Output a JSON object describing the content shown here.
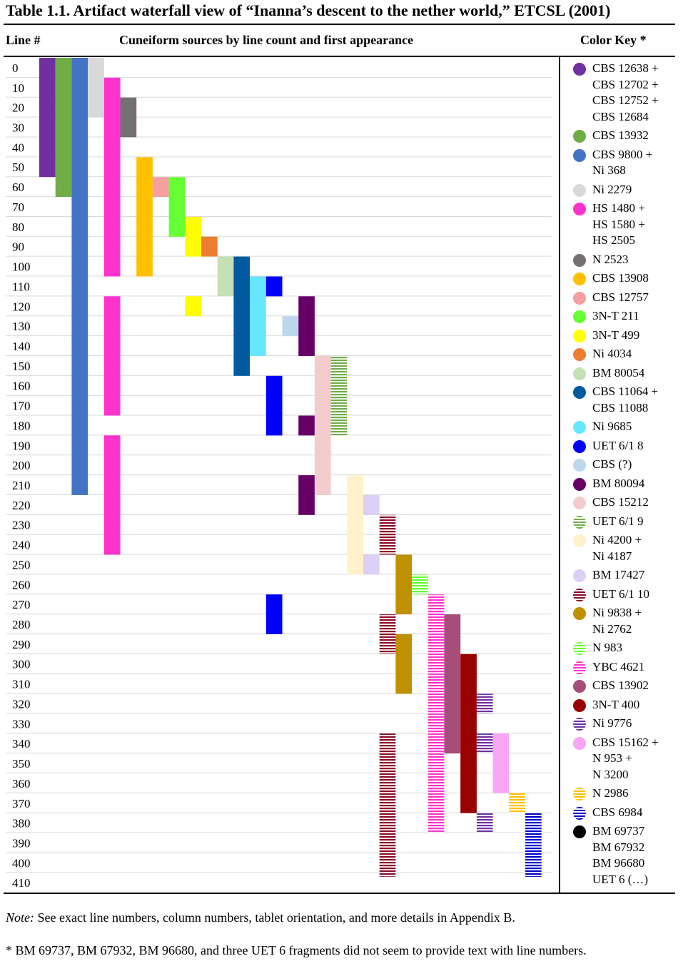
{
  "title": "Table 1.1. Artifact waterfall view of “Inanna’s descent to the nether world,” ETCSL (2001)",
  "headers": {
    "line": "Line #",
    "sources": "Cuneiform sources by line count and first appearance",
    "key": "Color Key *"
  },
  "note_label": "Note:",
  "note_text": " See exact line numbers, column numbers, tablet orientation, and more details in Appendix B.",
  "footnote": "* BM 69737, BM 67932, BM 96680, and three UET 6 fragments did not seem to provide text with line numbers.",
  "chart_data": {
    "type": "bar",
    "orientation": "vertical-range (waterfall)",
    "ylabel": "Line #",
    "xlabel": "Cuneiform sources by line count and first appearance",
    "yticks": [
      0,
      10,
      20,
      30,
      40,
      50,
      60,
      70,
      80,
      90,
      100,
      110,
      120,
      130,
      140,
      150,
      160,
      170,
      180,
      190,
      200,
      210,
      220,
      230,
      240,
      250,
      260,
      270,
      280,
      290,
      300,
      310,
      320,
      330,
      340,
      350,
      360,
      370,
      380,
      390,
      400,
      410
    ],
    "ylim": [
      0,
      412
    ],
    "grid": true,
    "legend_position": "right",
    "series": [
      {
        "name": "CBS 12638 + CBS 12702 + CBS 12752 + CBS 12684",
        "color": "#7030A0",
        "pattern": "solid",
        "ranges": [
          [
            0,
            59
          ]
        ]
      },
      {
        "name": "CBS 13932",
        "color": "#70AD47",
        "pattern": "solid",
        "ranges": [
          [
            0,
            69
          ]
        ]
      },
      {
        "name": "CBS 9800 + Ni 368",
        "color": "#4472C4",
        "pattern": "solid",
        "ranges": [
          [
            0,
            219
          ]
        ]
      },
      {
        "name": "Ni 2279",
        "color": "#D9D9D9",
        "pattern": "solid",
        "ranges": [
          [
            0,
            29
          ]
        ]
      },
      {
        "name": "HS 1480 + HS 1580 + HS 2505",
        "color": "#FF33CC",
        "pattern": "solid",
        "ranges": [
          [
            10,
            109
          ],
          [
            120,
            179
          ],
          [
            190,
            249
          ]
        ]
      },
      {
        "name": "N 2523",
        "color": "#767171",
        "pattern": "solid",
        "ranges": [
          [
            20,
            39
          ]
        ]
      },
      {
        "name": "CBS 13908",
        "color": "#FFC000",
        "pattern": "solid",
        "ranges": [
          [
            50,
            109
          ]
        ]
      },
      {
        "name": "CBS 12757",
        "color": "#F4A0A0",
        "pattern": "solid",
        "ranges": [
          [
            60,
            69
          ]
        ]
      },
      {
        "name": "3N-T 211",
        "color": "#66FF33",
        "pattern": "solid",
        "ranges": [
          [
            60,
            89
          ]
        ]
      },
      {
        "name": "3N-T 499",
        "color": "#FFFF00",
        "pattern": "solid",
        "ranges": [
          [
            80,
            99
          ],
          [
            120,
            129
          ]
        ]
      },
      {
        "name": "Ni 4034",
        "color": "#ED7D31",
        "pattern": "solid",
        "ranges": [
          [
            90,
            99
          ]
        ]
      },
      {
        "name": "BM 80054",
        "color": "#C5E0B4",
        "pattern": "solid",
        "ranges": [
          [
            100,
            119
          ]
        ]
      },
      {
        "name": "CBS 11064 + CBS 11088",
        "color": "#005AA0",
        "pattern": "solid",
        "ranges": [
          [
            100,
            159
          ]
        ]
      },
      {
        "name": "Ni 9685",
        "color": "#66E6FF",
        "pattern": "solid",
        "ranges": [
          [
            110,
            149
          ]
        ]
      },
      {
        "name": "UET 6/1 8",
        "color": "#0000FF",
        "pattern": "solid",
        "ranges": [
          [
            110,
            119
          ],
          [
            160,
            189
          ],
          [
            270,
            289
          ]
        ]
      },
      {
        "name": "CBS (?)",
        "color": "#BDD7EE",
        "pattern": "solid",
        "ranges": [
          [
            130,
            139
          ]
        ]
      },
      {
        "name": "BM 80094",
        "color": "#660066",
        "pattern": "solid",
        "ranges": [
          [
            120,
            149
          ],
          [
            180,
            189
          ],
          [
            210,
            229
          ]
        ]
      },
      {
        "name": "CBS 15212",
        "color": "#F2CCCC",
        "pattern": "solid",
        "ranges": [
          [
            150,
            219
          ]
        ]
      },
      {
        "name": "UET 6/1 9",
        "color": "#70AD47",
        "pattern": "striped",
        "ranges": [
          [
            150,
            189
          ]
        ]
      },
      {
        "name": "Ni 4200 + Ni 4187",
        "color": "#FFF2CC",
        "pattern": "solid",
        "ranges": [
          [
            210,
            259
          ]
        ]
      },
      {
        "name": "BM 17427",
        "color": "#DCD0F5",
        "pattern": "solid",
        "ranges": [
          [
            220,
            229
          ],
          [
            250,
            259
          ]
        ]
      },
      {
        "name": "UET 6/1 10",
        "color": "#8B0A28",
        "pattern": "striped",
        "ranges": [
          [
            230,
            249
          ],
          [
            280,
            299
          ],
          [
            340,
            412
          ]
        ]
      },
      {
        "name": "Ni 9838 + Ni 2762",
        "color": "#BF9000",
        "pattern": "solid",
        "ranges": [
          [
            250,
            279
          ],
          [
            290,
            319
          ]
        ]
      },
      {
        "name": "N 983",
        "color": "#66FF33",
        "pattern": "striped",
        "ranges": [
          [
            260,
            269
          ]
        ]
      },
      {
        "name": "YBC 4621",
        "color": "#FF33CC",
        "pattern": "striped",
        "ranges": [
          [
            270,
            389
          ]
        ]
      },
      {
        "name": "CBS 13902",
        "color": "#A64D79",
        "pattern": "solid",
        "ranges": [
          [
            280,
            349
          ]
        ]
      },
      {
        "name": "3N-T 400",
        "color": "#990000",
        "pattern": "solid",
        "ranges": [
          [
            300,
            379
          ]
        ]
      },
      {
        "name": "Ni 9776",
        "color": "#7030A0",
        "pattern": "striped",
        "ranges": [
          [
            320,
            329
          ],
          [
            340,
            349
          ],
          [
            380,
            389
          ]
        ]
      },
      {
        "name": "CBS 15162 + N 953 + N 3200",
        "color": "#F9A6F5",
        "pattern": "solid",
        "ranges": [
          [
            340,
            369
          ]
        ]
      },
      {
        "name": "N 2986",
        "color": "#FFC000",
        "pattern": "striped",
        "ranges": [
          [
            370,
            379
          ]
        ]
      },
      {
        "name": "CBS 6984",
        "color": "#0000CC",
        "pattern": "striped",
        "ranges": [
          [
            380,
            412
          ]
        ]
      }
    ],
    "legend": [
      {
        "lines": [
          "CBS 12638 +",
          "CBS 12702 +",
          "CBS 12752 +",
          "CBS 12684"
        ],
        "color": "#7030A0",
        "pattern": "solid"
      },
      {
        "lines": [
          "CBS 13932"
        ],
        "color": "#70AD47",
        "pattern": "solid"
      },
      {
        "lines": [
          "CBS 9800 +",
          "Ni 368"
        ],
        "color": "#4472C4",
        "pattern": "solid"
      },
      {
        "lines": [
          "Ni 2279"
        ],
        "color": "#D9D9D9",
        "pattern": "solid"
      },
      {
        "lines": [
          "HS 1480 +",
          "HS 1580 +",
          "HS 2505"
        ],
        "color": "#FF33CC",
        "pattern": "solid"
      },
      {
        "lines": [
          "N 2523"
        ],
        "color": "#767171",
        "pattern": "solid"
      },
      {
        "lines": [
          "CBS 13908"
        ],
        "color": "#FFC000",
        "pattern": "solid"
      },
      {
        "lines": [
          "CBS 12757"
        ],
        "color": "#F4A0A0",
        "pattern": "solid"
      },
      {
        "lines": [
          "3N-T 211"
        ],
        "color": "#66FF33",
        "pattern": "solid"
      },
      {
        "lines": [
          "3N-T 499"
        ],
        "color": "#FFFF00",
        "pattern": "solid"
      },
      {
        "lines": [
          "Ni 4034"
        ],
        "color": "#ED7D31",
        "pattern": "solid"
      },
      {
        "lines": [
          "BM 80054"
        ],
        "color": "#C5E0B4",
        "pattern": "solid"
      },
      {
        "lines": [
          "CBS 11064 +",
          "CBS 11088"
        ],
        "color": "#005AA0",
        "pattern": "solid"
      },
      {
        "lines": [
          "Ni 9685"
        ],
        "color": "#66E6FF",
        "pattern": "solid"
      },
      {
        "lines": [
          "UET 6/1 8"
        ],
        "color": "#0000FF",
        "pattern": "solid"
      },
      {
        "lines": [
          "CBS (?)"
        ],
        "color": "#BDD7EE",
        "pattern": "solid"
      },
      {
        "lines": [
          "BM 80094"
        ],
        "color": "#660066",
        "pattern": "solid"
      },
      {
        "lines": [
          "CBS 15212"
        ],
        "color": "#F2CCCC",
        "pattern": "solid"
      },
      {
        "lines": [
          "UET 6/1 9"
        ],
        "color": "#70AD47",
        "pattern": "striped"
      },
      {
        "lines": [
          "Ni 4200 +",
          "Ni 4187"
        ],
        "color": "#FFF2CC",
        "pattern": "solid"
      },
      {
        "lines": [
          "BM 17427"
        ],
        "color": "#DCD0F5",
        "pattern": "solid"
      },
      {
        "lines": [
          "UET 6/1 10"
        ],
        "color": "#8B0A28",
        "pattern": "striped"
      },
      {
        "lines": [
          "Ni 9838 +",
          "Ni 2762"
        ],
        "color": "#BF9000",
        "pattern": "solid"
      },
      {
        "lines": [
          "N 983"
        ],
        "color": "#66FF33",
        "pattern": "striped"
      },
      {
        "lines": [
          "YBC 4621"
        ],
        "color": "#FF33CC",
        "pattern": "striped"
      },
      {
        "lines": [
          "CBS 13902"
        ],
        "color": "#A64D79",
        "pattern": "solid"
      },
      {
        "lines": [
          "3N-T 400"
        ],
        "color": "#990000",
        "pattern": "solid"
      },
      {
        "lines": [
          "Ni 9776"
        ],
        "color": "#7030A0",
        "pattern": "striped"
      },
      {
        "lines": [
          "CBS 15162 +",
          "N 953 +",
          "N 3200"
        ],
        "color": "#F9A6F5",
        "pattern": "solid"
      },
      {
        "lines": [
          "N 2986"
        ],
        "color": "#FFC000",
        "pattern": "striped"
      },
      {
        "lines": [
          "CBS 6984"
        ],
        "color": "#0000CC",
        "pattern": "striped"
      },
      {
        "lines": [
          "BM 69737",
          "BM 67932",
          "BM 96680",
          "UET 6 (…)"
        ],
        "color": "#000000",
        "pattern": "solid"
      }
    ]
  }
}
